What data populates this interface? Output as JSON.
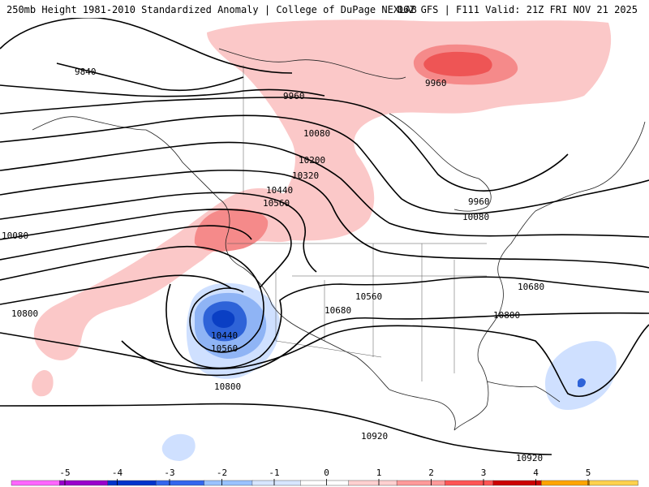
{
  "header": {
    "title_left": "250mb Height 1981-2010 Standardized Anomaly | College of DuPage NEXLAB",
    "title_right": "06Z GFS | F111 Valid: 21Z FRI NOV 21 2025"
  },
  "contour_labels": [
    "9840",
    "9960",
    "9960",
    "9960",
    "10080",
    "10080",
    "10080",
    "10200",
    "10320",
    "10440",
    "10440",
    "10560",
    "10560",
    "10560",
    "10680",
    "10680",
    "10800",
    "10800",
    "10800",
    "10920",
    "10920"
  ],
  "colorbar": {
    "ticks": [
      "-5",
      "-4",
      "-3",
      "-2",
      "-1",
      "0",
      "1",
      "2",
      "3",
      "4",
      "5"
    ],
    "colors": [
      "#ff66ff",
      "#9900cc",
      "#0033cc",
      "#3366ee",
      "#99c2ff",
      "#d7e6ff",
      "#ffffff",
      "#ffd0d0",
      "#ff9a9a",
      "#ff5555",
      "#cc0000",
      "#ffa500",
      "#ffd24d"
    ]
  },
  "legend_colors": {
    "light_red": "#fbc8c8",
    "mid_red": "#f58a8a",
    "dark_red": "#ee5555",
    "light_blue": "#cfe0ff",
    "mid_blue": "#8fb4f5",
    "dark_blue": "#2e63d8",
    "deep_blue": "#0a3fc4"
  }
}
